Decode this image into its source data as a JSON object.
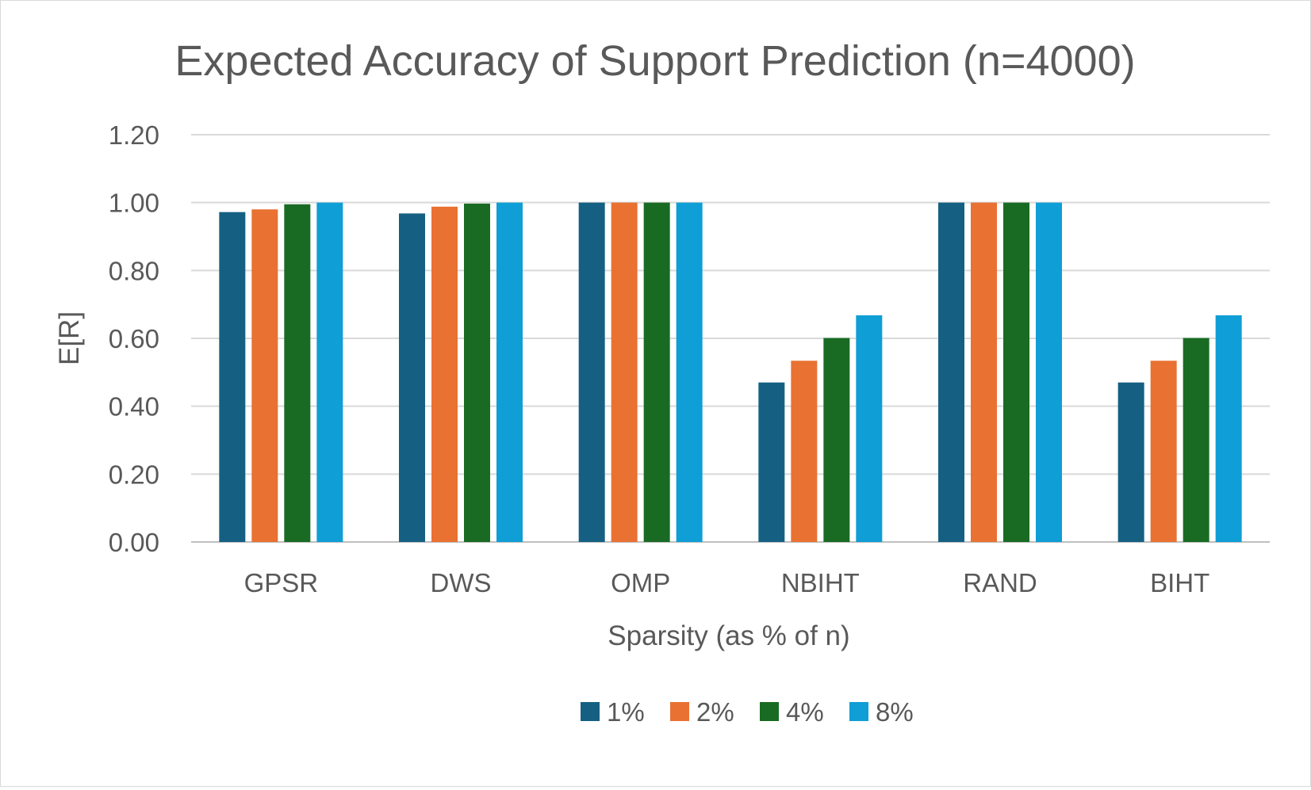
{
  "chart_data": {
    "type": "bar",
    "title": "Expected Accuracy of Support Prediction (n=4000)",
    "xlabel": "Sparsity (as % of n)",
    "ylabel": "E[R]",
    "categories": [
      "GPSR",
      "DWS",
      "OMP",
      "NBIHT",
      "RAND",
      "BIHT"
    ],
    "ylim": [
      0,
      1.2
    ],
    "yticks": [
      "0.00",
      "0.20",
      "0.40",
      "0.60",
      "0.80",
      "1.00",
      "1.20"
    ],
    "grid": true,
    "legend_position": "bottom",
    "series": [
      {
        "name": "1%",
        "color": "#156082",
        "values": [
          0.972,
          0.968,
          1.0,
          0.47,
          1.0,
          0.47
        ]
      },
      {
        "name": "2%",
        "color": "#E97132",
        "values": [
          0.98,
          0.988,
          1.0,
          0.534,
          1.0,
          0.534
        ]
      },
      {
        "name": "4%",
        "color": "#196B24",
        "values": [
          0.995,
          0.997,
          1.0,
          0.601,
          1.0,
          0.601
        ]
      },
      {
        "name": "8%",
        "color": "#0F9ED5",
        "values": [
          1.0,
          1.0,
          1.0,
          0.668,
          1.0,
          0.668
        ]
      }
    ]
  }
}
